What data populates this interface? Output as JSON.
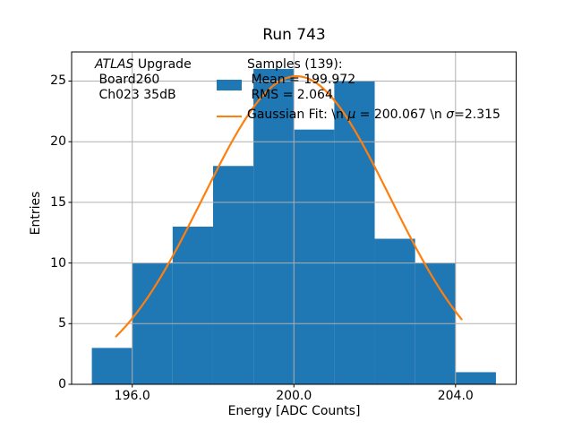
{
  "chart_data": {
    "type": "bar",
    "subtype": "histogram-with-gaussian-fit",
    "title": "Run 743",
    "xlabel": "Energy [ADC Counts]",
    "ylabel": "Entries",
    "xlim": [
      194.5,
      205.5
    ],
    "ylim": [
      0,
      27.4
    ],
    "grid": true,
    "bin_edges": [
      195,
      196,
      197,
      198,
      199,
      200,
      201,
      202,
      203,
      204,
      205
    ],
    "counts": [
      3,
      10,
      13,
      18,
      26,
      21,
      25,
      12,
      10,
      1
    ],
    "total_entries": 139,
    "stats": {
      "samples": 139,
      "mean": 199.972,
      "rms": 2.064
    },
    "fit": {
      "shape": "gaussian",
      "amplitude": 25.4,
      "mu": 200.067,
      "sigma": 2.315,
      "x_start": 195.6,
      "x_end": 204.15
    },
    "x_ticks": [
      {
        "value": 196,
        "label": "196.0"
      },
      {
        "value": 200,
        "label": "200.0"
      },
      {
        "value": 204,
        "label": "204.0"
      }
    ],
    "y_ticks": [
      {
        "value": 0,
        "label": "0"
      },
      {
        "value": 5,
        "label": "5"
      },
      {
        "value": 10,
        "label": "10"
      },
      {
        "value": 15,
        "label": "15"
      },
      {
        "value": 20,
        "label": "20"
      },
      {
        "value": 25,
        "label": "25"
      }
    ],
    "legend_position": "upper center",
    "series": [
      {
        "name": "Samples (139): Mean = 199.972 RMS = 2.064",
        "type": "bar"
      },
      {
        "name": "Gaussian Fit: \\n μ = 200.067 \\n σ=2.315",
        "type": "line"
      }
    ]
  },
  "annotation": {
    "line1_italic": "ATLAS",
    "line1_rest": " Upgrade",
    "line2": " Board260",
    "line3": " Ch023 35dB"
  },
  "legend": {
    "entry1": {
      "line1": "Samples (139):",
      "line2": " Mean = 199.972",
      "line3": " RMS = 2.064"
    },
    "entry2": {
      "p1": "Gaussian Fit: \\n ",
      "mu": "μ",
      "p2": " = 200.067 \\n ",
      "sigma": "σ",
      "p3": "=2.315"
    }
  },
  "colors": {
    "bar": "#1f77b4",
    "fit_line": "#ff7f0e",
    "grid": "#b0b0b0",
    "spine": "#000000",
    "text": "#000000",
    "background": "#ffffff"
  }
}
